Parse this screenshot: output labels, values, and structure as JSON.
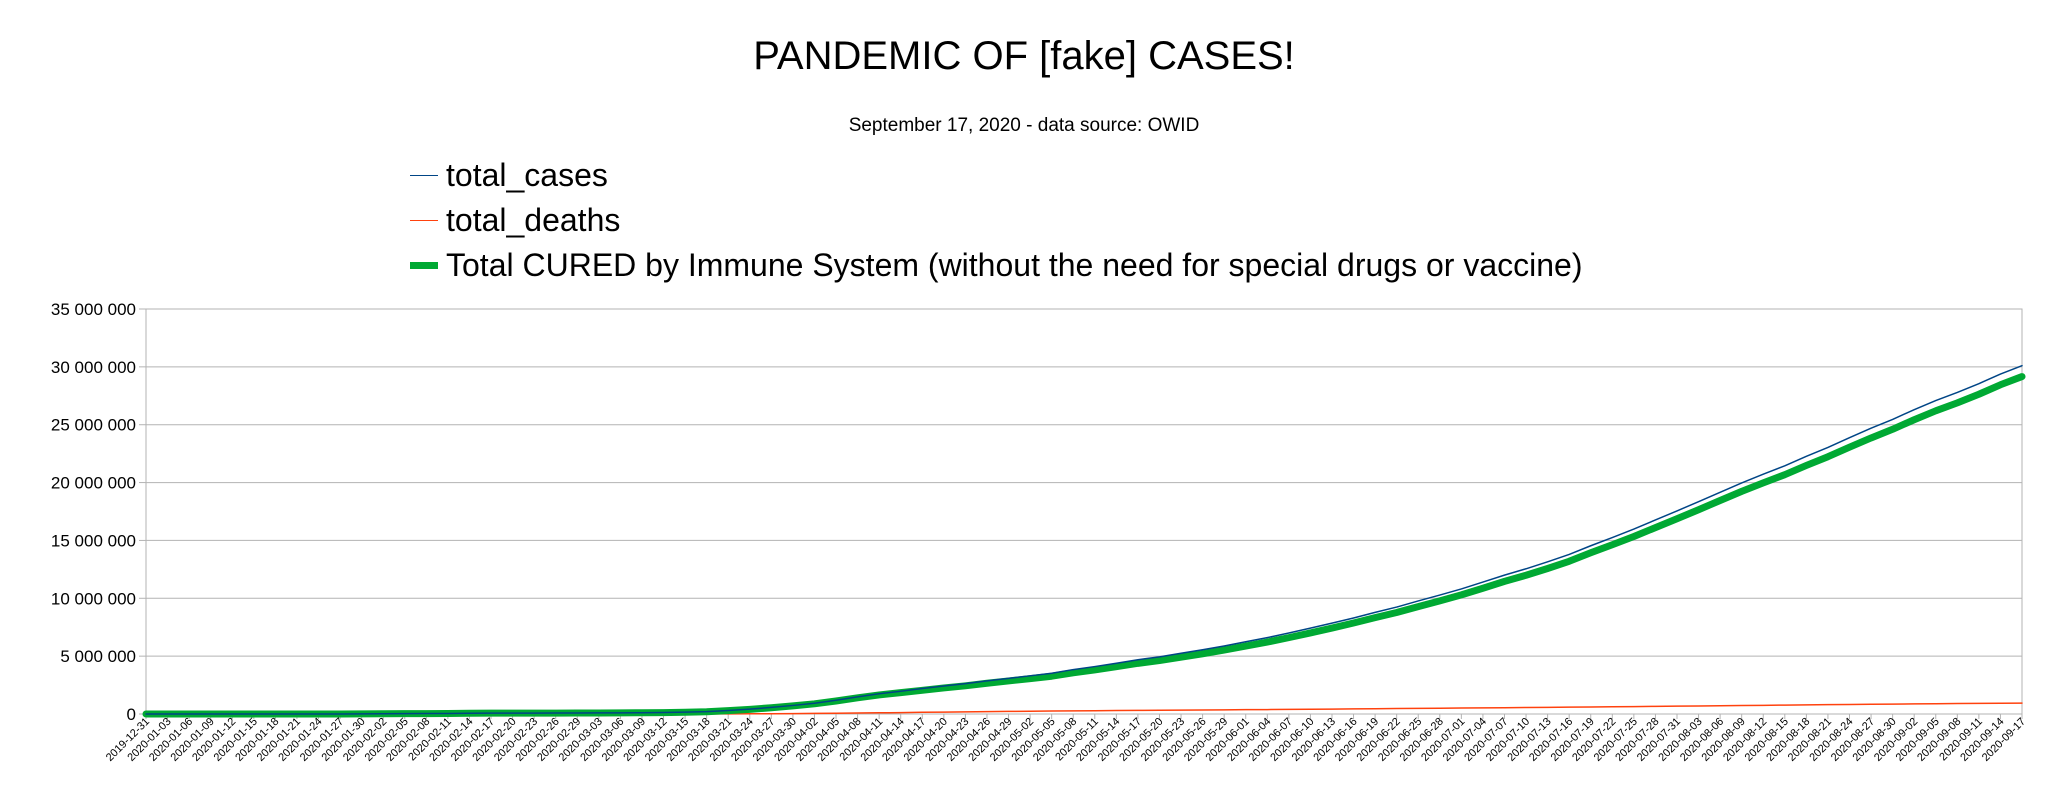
{
  "chart_data": {
    "type": "line",
    "title": "PANDEMIC OF [fake] CASES!",
    "subtitle": "September 17, 2020 - data source: OWID",
    "ylim": [
      0,
      35000000
    ],
    "y_ticks": [
      0,
      5000000,
      10000000,
      15000000,
      20000000,
      25000000,
      30000000,
      35000000
    ],
    "y_tick_labels": [
      "0",
      "5 000 000",
      "10 000 000",
      "15 000 000",
      "20 000 000",
      "25 000 000",
      "30 000 000",
      "35 000 000"
    ],
    "x_tick_labels": [
      "2019-12-31",
      "2020-01-03",
      "2020-01-06",
      "2020-01-09",
      "2020-01-12",
      "2020-01-15",
      "2020-01-18",
      "2020-01-21",
      "2020-01-24",
      "2020-01-27",
      "2020-01-30",
      "2020-02-02",
      "2020-02-05",
      "2020-02-08",
      "2020-02-11",
      "2020-02-14",
      "2020-02-17",
      "2020-02-20",
      "2020-02-23",
      "2020-02-26",
      "2020-02-29",
      "2020-03-03",
      "2020-03-06",
      "2020-03-09",
      "2020-03-12",
      "2020-03-15",
      "2020-03-18",
      "2020-03-21",
      "2020-03-24",
      "2020-03-27",
      "2020-03-30",
      "2020-04-02",
      "2020-04-05",
      "2020-04-08",
      "2020-04-11",
      "2020-04-14",
      "2020-04-17",
      "2020-04-20",
      "2020-04-23",
      "2020-04-26",
      "2020-04-29",
      "2020-05-02",
      "2020-05-05",
      "2020-05-08",
      "2020-05-11",
      "2020-05-14",
      "2020-05-17",
      "2020-05-20",
      "2020-05-23",
      "2020-05-26",
      "2020-05-29",
      "2020-06-01",
      "2020-06-04",
      "2020-06-07",
      "2020-06-10",
      "2020-06-13",
      "2020-06-16",
      "2020-06-19",
      "2020-06-22",
      "2020-06-25",
      "2020-06-28",
      "2020-07-01",
      "2020-07-04",
      "2020-07-07",
      "2020-07-10",
      "2020-07-13",
      "2020-07-16",
      "2020-07-19",
      "2020-07-22",
      "2020-07-25",
      "2020-07-28",
      "2020-07-31",
      "2020-08-03",
      "2020-08-06",
      "2020-08-09",
      "2020-08-12",
      "2020-08-15",
      "2020-08-18",
      "2020-08-21",
      "2020-08-24",
      "2020-08-27",
      "2020-08-30",
      "2020-09-02",
      "2020-09-05",
      "2020-09-08",
      "2020-09-11",
      "2020-09-14",
      "2020-09-17"
    ],
    "x": [
      "2019-12-31",
      "2020-01-03",
      "2020-01-06",
      "2020-01-09",
      "2020-01-12",
      "2020-01-15",
      "2020-01-18",
      "2020-01-21",
      "2020-01-24",
      "2020-01-27",
      "2020-01-30",
      "2020-02-02",
      "2020-02-05",
      "2020-02-08",
      "2020-02-11",
      "2020-02-14",
      "2020-02-17",
      "2020-02-20",
      "2020-02-23",
      "2020-02-26",
      "2020-02-29",
      "2020-03-03",
      "2020-03-06",
      "2020-03-09",
      "2020-03-12",
      "2020-03-15",
      "2020-03-18",
      "2020-03-21",
      "2020-03-24",
      "2020-03-27",
      "2020-03-30",
      "2020-04-02",
      "2020-04-05",
      "2020-04-08",
      "2020-04-11",
      "2020-04-14",
      "2020-04-17",
      "2020-04-20",
      "2020-04-23",
      "2020-04-26",
      "2020-04-29",
      "2020-05-02",
      "2020-05-05",
      "2020-05-08",
      "2020-05-11",
      "2020-05-14",
      "2020-05-17",
      "2020-05-20",
      "2020-05-23",
      "2020-05-26",
      "2020-05-29",
      "2020-06-01",
      "2020-06-04",
      "2020-06-07",
      "2020-06-10",
      "2020-06-13",
      "2020-06-16",
      "2020-06-19",
      "2020-06-22",
      "2020-06-25",
      "2020-06-28",
      "2020-07-01",
      "2020-07-04",
      "2020-07-07",
      "2020-07-10",
      "2020-07-13",
      "2020-07-16",
      "2020-07-19",
      "2020-07-22",
      "2020-07-25",
      "2020-07-28",
      "2020-07-31",
      "2020-08-03",
      "2020-08-06",
      "2020-08-09",
      "2020-08-12",
      "2020-08-15",
      "2020-08-18",
      "2020-08-21",
      "2020-08-24",
      "2020-08-27",
      "2020-08-30",
      "2020-09-02",
      "2020-09-05",
      "2020-09-08",
      "2020-09-11",
      "2020-09-14",
      "2020-09-17"
    ],
    "series": [
      {
        "name": "total_cases",
        "color": "#004586",
        "values": [
          27,
          44,
          59,
          59,
          59,
          60,
          155,
          330,
          900,
          2800,
          9800,
          17400,
          28300,
          37600,
          45000,
          64000,
          72500,
          76000,
          79000,
          81500,
          86000,
          92500,
          102000,
          112000,
          128000,
          157000,
          202000,
          300000,
          418000,
          570000,
          740000,
          930000,
          1190000,
          1480000,
          1750000,
          1970000,
          2200000,
          2420000,
          2620000,
          2860000,
          3080000,
          3300000,
          3520000,
          3840000,
          4100000,
          4390000,
          4690000,
          4940000,
          5250000,
          5550000,
          5880000,
          6240000,
          6600000,
          7000000,
          7420000,
          7850000,
          8300000,
          8780000,
          9240000,
          9770000,
          10280000,
          10810000,
          11400000,
          12000000,
          12550000,
          13150000,
          13790000,
          14540000,
          15250000,
          15980000,
          16770000,
          17550000,
          18350000,
          19160000,
          19970000,
          20720000,
          21450000,
          22270000,
          23040000,
          23880000,
          24700000,
          25460000,
          26300000,
          27090000,
          27790000,
          28550000,
          29380000,
          30100000
        ]
      },
      {
        "name": "total_deaths",
        "color": "#ff420e",
        "values": [
          0,
          0,
          0,
          0,
          0,
          0,
          0,
          6,
          26,
          81,
          213,
          362,
          565,
          812,
          1110,
          1527,
          1870,
          2120,
          2462,
          2763,
          2940,
          3210,
          3460,
          3800,
          4700,
          6000,
          8300,
          13300,
          18400,
          26500,
          37000,
          50000,
          67000,
          82000,
          104000,
          123000,
          153000,
          166000,
          185000,
          204000,
          224000,
          240000,
          255000,
          274000,
          286000,
          298000,
          313000,
          324000,
          340000,
          350000,
          357000,
          373000,
          383000,
          399000,
          413000,
          426000,
          438000,
          454000,
          471000,
          489000,
          502000,
          517000,
          532000,
          540000,
          561000,
          576000,
          591000,
          606000,
          625000,
          641000,
          662000,
          676000,
          695000,
          712000,
          734000,
          749000,
          768000,
          791000,
          805000,
          825000,
          844000,
          854000,
          870000,
          888000,
          902000,
          918000,
          929000,
          940000
        ]
      },
      {
        "name": "Total CURED by Immune System (without the need for special drugs or vaccine)",
        "color": "#00a933",
        "values": [
          27,
          44,
          59,
          59,
          59,
          60,
          155,
          324,
          874,
          2719,
          9587,
          17038,
          27735,
          36788,
          43890,
          62473,
          70630,
          73880,
          76538,
          78737,
          83060,
          89290,
          98540,
          108200,
          123300,
          151000,
          193700,
          286700,
          399600,
          543500,
          703000,
          880000,
          1123000,
          1398000,
          1646000,
          1847000,
          2047000,
          2254000,
          2435000,
          2656000,
          2856000,
          3060000,
          3265000,
          3566000,
          3814000,
          4092000,
          4377000,
          4616000,
          4910000,
          5200000,
          5523000,
          5867000,
          6217000,
          6601000,
          7007000,
          7424000,
          7862000,
          8326000,
          8769000,
          9281000,
          9778000,
          10293000,
          10868000,
          11460000,
          11989000,
          12574000,
          13199000,
          13934000,
          14625000,
          15339000,
          16108000,
          16874000,
          17655000,
          18448000,
          19236000,
          19971000,
          20682000,
          21479000,
          22235000,
          23055000,
          23856000,
          24606000,
          25430000,
          26202000,
          26888000,
          27632000,
          28451000,
          29160000
        ]
      }
    ]
  }
}
